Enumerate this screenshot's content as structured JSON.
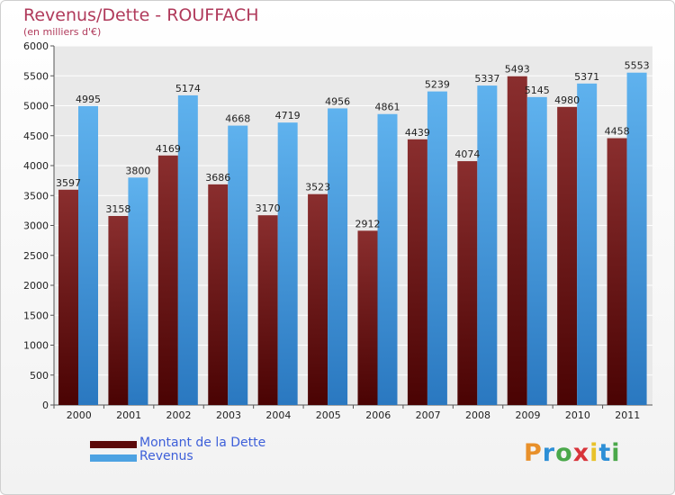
{
  "title": "Revenus/Dette - ROUFFACH",
  "subtitle": "(en milliers d'€)",
  "logo": {
    "letters": [
      "P",
      "r",
      "o",
      "x",
      "i",
      "t",
      "i"
    ],
    "colors": [
      "#e8902a",
      "#2d8fd6",
      "#4aa84a",
      "#d8343a",
      "#e8c22a",
      "#2d8fd6",
      "#4aa84a"
    ]
  },
  "legend": [
    {
      "name": "Montant de la Dette",
      "color": "#5c0a0a"
    },
    {
      "name": "Revenus",
      "color": "#4da2e2"
    }
  ],
  "chart_data": {
    "type": "bar",
    "categories": [
      "2000",
      "2001",
      "2002",
      "2003",
      "2004",
      "2005",
      "2006",
      "2007",
      "2008",
      "2009",
      "2010",
      "2011"
    ],
    "series": [
      {
        "name": "Montant de la Dette",
        "color": "#7a1c1c",
        "values": [
          3597,
          3158,
          4169,
          3686,
          3170,
          3523,
          2912,
          4439,
          4074,
          5493,
          4980,
          4458
        ],
        "labels": [
          "3597",
          "3158",
          "4169",
          "3686",
          "3170",
          "3523",
          "2912",
          "4439",
          "4074",
          "5493",
          "4980",
          "4458"
        ]
      },
      {
        "name": "Revenus",
        "color": "#4da2e2",
        "values": [
          4995,
          3800,
          5174,
          4668,
          4719,
          4956,
          4861,
          5239,
          5337,
          5145,
          5371,
          5553
        ],
        "labels": [
          "4995",
          "3800",
          "5174",
          "4668",
          "4719",
          "4956",
          "4861",
          "5239",
          "5337",
          "5145",
          "5371",
          "5553"
        ]
      }
    ],
    "ylim": [
      0,
      6000
    ],
    "yticks": [
      "0",
      "500",
      "1000",
      "1500",
      "2000",
      "2500",
      "3000",
      "3500",
      "4000",
      "4500",
      "5000",
      "5500",
      "6000"
    ],
    "grid": true,
    "legend_position": "bottom-left"
  }
}
